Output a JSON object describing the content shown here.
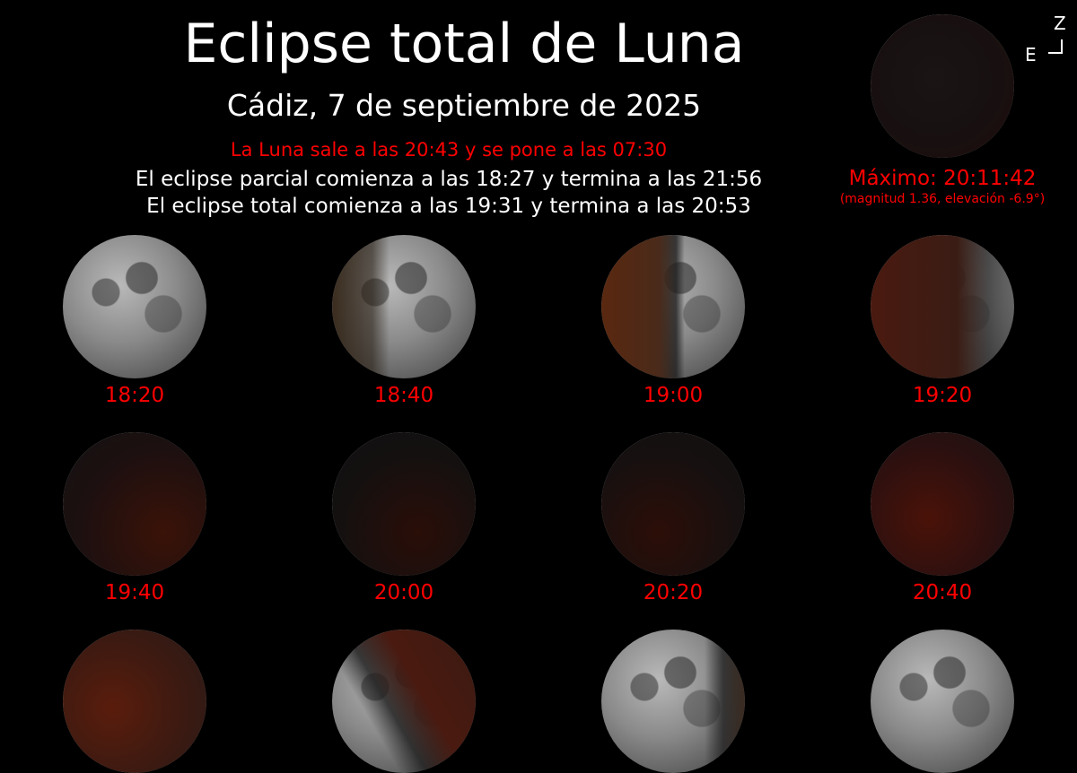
{
  "title": "Eclipse total de Luna",
  "subtitle": "Cádiz, 7 de septiembre de 2025",
  "moonrise_line": "La Luna sale a las 20:43 y se pone a las 07:30",
  "partial_line": "El eclipse parcial comienza a las 18:27 y termina a las 21:56",
  "total_line": "El eclipse total comienza a las 19:31 y termina a las 20:53",
  "maximum": {
    "label": "Máximo: 20:11:42",
    "detail": "(magnitud 1.36, elevación -6.9°)"
  },
  "orientation": {
    "zenith": "Z",
    "east": "E"
  },
  "colors": {
    "accent": "#ff0000",
    "text": "#ffffff",
    "background": "#000000"
  },
  "phases": [
    {
      "time": "18:20"
    },
    {
      "time": "18:40"
    },
    {
      "time": "19:00"
    },
    {
      "time": "19:20"
    },
    {
      "time": "19:40"
    },
    {
      "time": "20:00"
    },
    {
      "time": "20:20"
    },
    {
      "time": "20:40"
    },
    {
      "time": ""
    },
    {
      "time": ""
    },
    {
      "time": ""
    },
    {
      "time": ""
    }
  ]
}
